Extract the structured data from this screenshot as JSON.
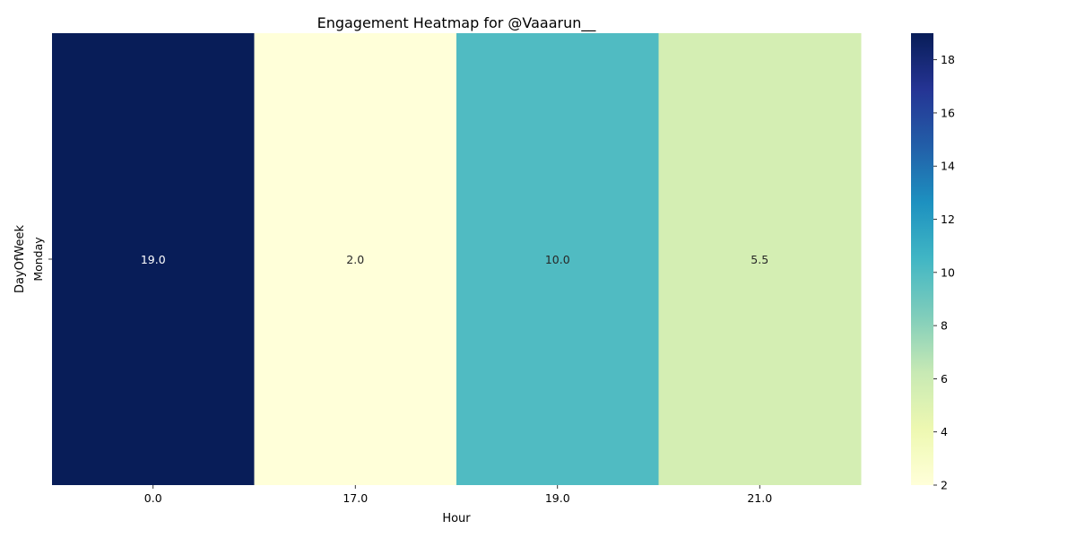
{
  "chart_data": {
    "type": "heatmap",
    "title": "Engagement Heatmap for @Vaaarun__",
    "xlabel": "Hour",
    "ylabel": "DayOfWeek",
    "x_categories": [
      "0.0",
      "17.0",
      "19.0",
      "21.0"
    ],
    "y_categories": [
      "Monday"
    ],
    "values": [
      [
        19.0,
        2.0,
        10.0,
        5.5
      ]
    ],
    "cell_labels": [
      [
        "19.0",
        "2.0",
        "10.0",
        "5.5"
      ]
    ],
    "colorbar": {
      "colormap": "YlGnBu",
      "range": [
        2,
        19
      ],
      "ticks": [
        2,
        4,
        6,
        8,
        10,
        12,
        14,
        16,
        18
      ]
    },
    "colors": {
      "annotation_dark_text": "#262626",
      "annotation_light_text": "#ffffff"
    }
  }
}
